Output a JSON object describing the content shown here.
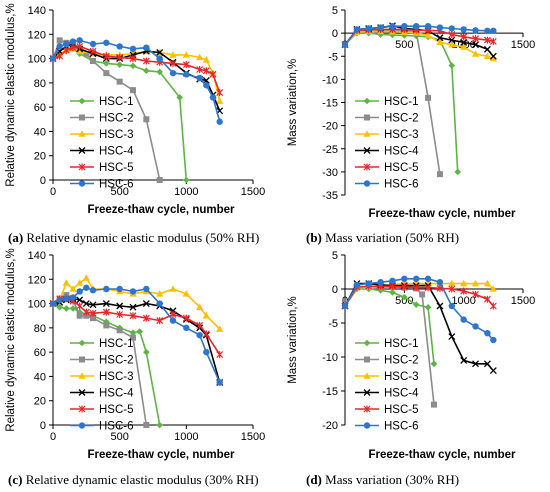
{
  "captions": [
    {
      "letter": "(a)",
      "text": " Relative dynamic elastic modulus (50% RH)"
    },
    {
      "letter": "(b)",
      "text": " Mass variation (50% RH)"
    },
    {
      "letter": "(c)",
      "text": " Relative dynamic elastic modulus (30% RH)"
    },
    {
      "letter": "(d)",
      "text": " Mass variation (30% RH)"
    }
  ],
  "series_styles": [
    {
      "name": "HSC-1",
      "color": "#5DB542",
      "marker": "diamond"
    },
    {
      "name": "HSC-2",
      "color": "#8C8C8C",
      "marker": "square"
    },
    {
      "name": "HSC-3",
      "color": "#FFC000",
      "marker": "triangle"
    },
    {
      "name": "HSC-4",
      "color": "#000000",
      "marker": "x"
    },
    {
      "name": "HSC-5",
      "color": "#E8262B",
      "marker": "star"
    },
    {
      "name": "HSC-6",
      "color": "#2E75CF",
      "marker": "circle"
    }
  ],
  "chart_data": [
    {
      "id": "a",
      "type": "line",
      "xlabel": "Freeze-thaw cycle, number",
      "ylabel": "Relative dynamic elastic modulus,%",
      "xlim": [
        0,
        1500
      ],
      "ylim": [
        0,
        140
      ],
      "xticks": [
        0,
        500,
        1000,
        1500
      ],
      "yticks": [
        0,
        20,
        40,
        60,
        80,
        100,
        120,
        140
      ],
      "grid": false,
      "legend": "lower-left",
      "series": [
        {
          "name": "HSC-1",
          "x": [
            0,
            50,
            100,
            150,
            200,
            300,
            400,
            500,
            600,
            700,
            800,
            950,
            1000
          ],
          "y": [
            100,
            103,
            106,
            108,
            104,
            98,
            96,
            95,
            94,
            90,
            89,
            68,
            0
          ]
        },
        {
          "name": "HSC-2",
          "x": [
            0,
            50,
            100,
            150,
            200,
            250,
            300,
            400,
            500,
            600,
            700,
            800
          ],
          "y": [
            100,
            115,
            113,
            110,
            107,
            104,
            98,
            88,
            81,
            74,
            50,
            0
          ]
        },
        {
          "name": "HSC-3",
          "x": [
            0,
            50,
            100,
            150,
            200,
            300,
            400,
            500,
            600,
            700,
            800,
            900,
            1000,
            1100,
            1150,
            1200,
            1250
          ],
          "y": [
            100,
            104,
            107,
            108,
            106,
            104,
            103,
            103,
            104,
            106,
            105,
            103,
            103,
            101,
            99,
            88,
            65
          ]
        },
        {
          "name": "HSC-4",
          "x": [
            0,
            50,
            100,
            150,
            200,
            300,
            400,
            500,
            600,
            700,
            800,
            900,
            1000,
            1100,
            1150,
            1200,
            1250
          ],
          "y": [
            100,
            106,
            110,
            112,
            108,
            104,
            100,
            100,
            103,
            106,
            105,
            97,
            88,
            83,
            82,
            70,
            57
          ]
        },
        {
          "name": "HSC-5",
          "x": [
            0,
            50,
            100,
            150,
            200,
            300,
            400,
            500,
            600,
            700,
            800,
            900,
            1000,
            1100,
            1150,
            1200,
            1250
          ],
          "y": [
            100,
            102,
            107,
            109,
            110,
            106,
            102,
            101,
            100,
            98,
            97,
            96,
            95,
            91,
            90,
            87,
            72
          ]
        },
        {
          "name": "HSC-6",
          "x": [
            0,
            50,
            100,
            150,
            200,
            300,
            400,
            500,
            600,
            700,
            800,
            900,
            1000,
            1100,
            1150,
            1200,
            1250
          ],
          "y": [
            100,
            110,
            112,
            114,
            115,
            112,
            113,
            110,
            108,
            109,
            100,
            88,
            87,
            84,
            78,
            68,
            48
          ]
        }
      ]
    },
    {
      "id": "b",
      "type": "line",
      "xlabel": "Freeze-thaw cycle, number",
      "ylabel": "Mass variation,%",
      "xlim": [
        0,
        1500
      ],
      "ylim": [
        -35,
        5
      ],
      "xticks": [
        0,
        500,
        1000,
        1500
      ],
      "yticks": [
        5,
        0,
        -5,
        -10,
        -15,
        -20,
        -25,
        -30,
        -35
      ],
      "grid": false,
      "legend": "left",
      "series": [
        {
          "name": "HSC-1",
          "x": [
            0,
            100,
            200,
            300,
            400,
            500,
            600,
            700,
            800,
            900,
            950
          ],
          "y": [
            -2.5,
            0,
            0,
            -0.3,
            -0.4,
            -0.5,
            -0.6,
            -0.8,
            -1.5,
            -7,
            -30
          ]
        },
        {
          "name": "HSC-2",
          "x": [
            0,
            100,
            200,
            300,
            400,
            500,
            600,
            700,
            800
          ],
          "y": [
            -2.5,
            0.3,
            0.5,
            0.6,
            0.5,
            0.4,
            0.3,
            -14,
            -30.5
          ]
        },
        {
          "name": "HSC-3",
          "x": [
            0,
            100,
            200,
            300,
            400,
            500,
            600,
            700,
            800,
            900,
            1000,
            1100,
            1200,
            1250
          ],
          "y": [
            -2.5,
            0.2,
            0.4,
            0.4,
            0.3,
            0.2,
            0.1,
            -0.5,
            -2.0,
            -2.5,
            -3.0,
            -4.5,
            -5.0,
            -5.5
          ]
        },
        {
          "name": "HSC-4",
          "x": [
            0,
            100,
            200,
            300,
            400,
            500,
            600,
            700,
            800,
            900,
            1000,
            1100,
            1200,
            1250
          ],
          "y": [
            -2.5,
            0.8,
            1.0,
            1.2,
            1.6,
            1.0,
            0.8,
            0.5,
            -1.0,
            -1.5,
            -2.0,
            -2.5,
            -3.5,
            -5.0
          ]
        },
        {
          "name": "HSC-5",
          "x": [
            0,
            100,
            200,
            300,
            400,
            500,
            600,
            700,
            800,
            900,
            1000,
            1100,
            1200,
            1250
          ],
          "y": [
            -2.5,
            0.6,
            0.7,
            0.8,
            0.8,
            0.8,
            0.6,
            0.6,
            0.5,
            -0.3,
            -0.8,
            -1.2,
            -1.5,
            -1.8
          ]
        },
        {
          "name": "HSC-6",
          "x": [
            0,
            100,
            200,
            300,
            400,
            500,
            600,
            700,
            800,
            900,
            1000,
            1100,
            1200,
            1250
          ],
          "y": [
            -2.5,
            0.8,
            1.0,
            1.2,
            1.5,
            1.5,
            1.5,
            1.5,
            1.2,
            1.0,
            0.8,
            0.6,
            0.5,
            0.5
          ]
        }
      ]
    },
    {
      "id": "c",
      "type": "line",
      "xlabel": "Freeze-thaw cycle, number",
      "ylabel": "Relative dynamic elastic modulus,%",
      "xlim": [
        0,
        1500
      ],
      "ylim": [
        0,
        140
      ],
      "xticks": [
        0,
        500,
        1000,
        1500
      ],
      "yticks": [
        0,
        20,
        40,
        60,
        80,
        100,
        120,
        140
      ],
      "grid": false,
      "legend": "lower-left",
      "series": [
        {
          "name": "HSC-1",
          "x": [
            0,
            50,
            100,
            150,
            200,
            300,
            400,
            500,
            600,
            650,
            700,
            800
          ],
          "y": [
            100,
            97,
            96,
            96,
            93,
            90,
            85,
            80,
            76,
            77,
            60,
            0
          ]
        },
        {
          "name": "HSC-2",
          "x": [
            0,
            50,
            100,
            150,
            200,
            250,
            300,
            400,
            500,
            600,
            700
          ],
          "y": [
            100,
            104,
            107,
            103,
            90,
            90,
            88,
            82,
            78,
            72,
            0
          ]
        },
        {
          "name": "HSC-3",
          "x": [
            0,
            50,
            100,
            150,
            200,
            250,
            300,
            400,
            500,
            600,
            700,
            800,
            900,
            1000,
            1100,
            1150,
            1250
          ],
          "y": [
            100,
            103,
            117,
            112,
            117,
            121,
            112,
            112,
            110,
            108,
            110,
            108,
            112,
            108,
            97,
            90,
            79
          ]
        },
        {
          "name": "HSC-4",
          "x": [
            0,
            50,
            100,
            150,
            200,
            250,
            300,
            400,
            500,
            600,
            700,
            800,
            900,
            1000,
            1100,
            1150,
            1250
          ],
          "y": [
            100,
            101,
            103,
            104,
            103,
            100,
            99,
            100,
            98,
            97,
            100,
            98,
            94,
            87,
            80,
            74,
            35
          ]
        },
        {
          "name": "HSC-5",
          "x": [
            0,
            50,
            100,
            150,
            200,
            250,
            300,
            400,
            500,
            600,
            700,
            800,
            900,
            1000,
            1100,
            1150,
            1250
          ],
          "y": [
            100,
            104,
            104,
            102,
            98,
            93,
            92,
            93,
            91,
            90,
            88,
            86,
            91,
            88,
            82,
            75,
            58
          ]
        },
        {
          "name": "HSC-6",
          "x": [
            0,
            50,
            100,
            150,
            200,
            250,
            300,
            400,
            500,
            600,
            700,
            800,
            900,
            1000,
            1100,
            1150,
            1250
          ],
          "y": [
            100,
            103,
            104,
            105,
            110,
            113,
            111,
            112,
            112,
            110,
            112,
            100,
            86,
            80,
            74,
            60,
            35
          ]
        }
      ]
    },
    {
      "id": "d",
      "type": "line",
      "xlabel": "Freeze-thaw cycle, number",
      "ylabel": "Mass variation,%",
      "xlim": [
        0,
        1500
      ],
      "ylim": [
        -20,
        5
      ],
      "xticks": [
        0,
        500,
        1000,
        1500
      ],
      "yticks": [
        5,
        0,
        -5,
        -10,
        -15,
        -20
      ],
      "grid": false,
      "legend": "left",
      "series": [
        {
          "name": "HSC-1",
          "x": [
            0,
            100,
            200,
            300,
            400,
            500,
            600,
            700,
            750
          ],
          "y": [
            -2.5,
            0,
            0,
            -0.2,
            -0.5,
            -1.2,
            -2.3,
            -2.7,
            -11
          ]
        },
        {
          "name": "HSC-2",
          "x": [
            0,
            100,
            200,
            300,
            400,
            500,
            600,
            650,
            750
          ],
          "y": [
            -2.5,
            0.2,
            0.3,
            0.3,
            0.3,
            0.2,
            0.1,
            -0.8,
            -17
          ]
        },
        {
          "name": "HSC-3",
          "x": [
            0,
            100,
            200,
            300,
            400,
            500,
            600,
            700,
            800,
            900,
            1000,
            1100,
            1200,
            1250
          ],
          "y": [
            -2.5,
            0.2,
            0.3,
            0.5,
            0.6,
            0.8,
            0.8,
            0.8,
            0.8,
            0.8,
            0.8,
            0.8,
            0.8,
            0
          ]
        },
        {
          "name": "HSC-4",
          "x": [
            0,
            100,
            200,
            300,
            400,
            500,
            600,
            700,
            800,
            900,
            1000,
            1100,
            1200,
            1250
          ],
          "y": [
            -2.5,
            0.8,
            0.8,
            0.6,
            0.5,
            0.5,
            0.5,
            0.5,
            -2.5,
            -7,
            -10.5,
            -11,
            -11,
            -12
          ]
        },
        {
          "name": "HSC-5",
          "x": [
            0,
            100,
            200,
            300,
            400,
            500,
            600,
            700,
            800,
            900,
            1000,
            1100,
            1200,
            1250
          ],
          "y": [
            -2.5,
            0.3,
            0.4,
            0.4,
            0.4,
            0.3,
            0.2,
            0.2,
            0.1,
            0,
            -0.3,
            -0.8,
            -1.5,
            -2.5
          ]
        },
        {
          "name": "HSC-6",
          "x": [
            0,
            100,
            200,
            300,
            400,
            500,
            600,
            700,
            800,
            900,
            1000,
            1100,
            1200,
            1250
          ],
          "y": [
            -2.5,
            0.6,
            0.8,
            1.0,
            1.2,
            1.5,
            1.5,
            1.5,
            1.0,
            -2.5,
            -4.5,
            -5.5,
            -6.5,
            -7.5
          ]
        }
      ]
    }
  ]
}
